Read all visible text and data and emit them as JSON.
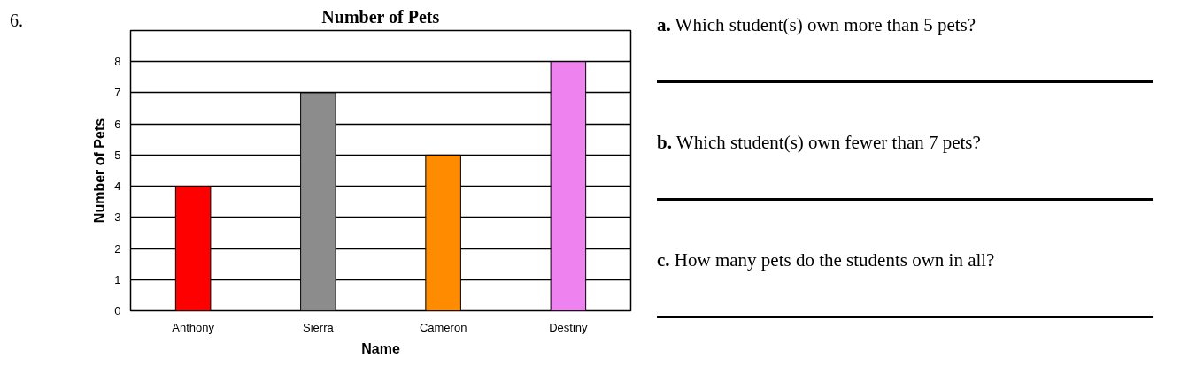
{
  "chart_data": {
    "type": "bar",
    "title": "Number of Pets",
    "xlabel": "Name",
    "ylabel": "Number of Pets",
    "categories": [
      "Anthony",
      "Sierra",
      "Cameron",
      "Destiny"
    ],
    "values": [
      4,
      7,
      5,
      8
    ],
    "colors": [
      "#ff0000",
      "#8c8c8c",
      "#ff8c00",
      "#ee82ee"
    ],
    "ylim": [
      0,
      9
    ],
    "yticks": [
      0,
      1,
      2,
      3,
      4,
      5,
      6,
      7,
      8
    ],
    "grid": "y",
    "annotations": [
      "6.",
      "a.  Which student(s) own more than 5 pets?",
      "b.  Which student(s) own fewer than 7 pets?",
      "c.  How many pets do the students own in all?"
    ]
  }
}
